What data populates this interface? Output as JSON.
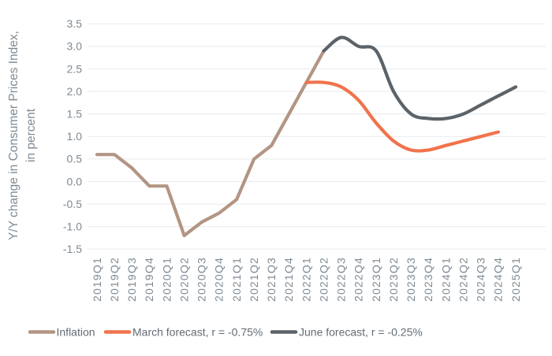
{
  "chart_data": {
    "type": "line",
    "title": "",
    "ylabel_line1": "Y/Y change in Consumer Prices Index,",
    "ylabel_line2": "in percent",
    "xlabel": "",
    "grid": true,
    "legend_position": "bottom",
    "ylim": [
      -1.5,
      3.5
    ],
    "y_ticks": [
      3.5,
      3.0,
      2.5,
      2.0,
      1.5,
      1.0,
      0.5,
      0.0,
      -0.5,
      -1.0,
      -1.5
    ],
    "categories": [
      "2019Q1",
      "2019Q2",
      "2019Q3",
      "2019Q4",
      "2020Q1",
      "2020Q2",
      "2020Q3",
      "2020Q4",
      "2021Q1",
      "2021Q2",
      "2021Q3",
      "2021Q4",
      "2022Q1",
      "2022Q2",
      "2022Q3",
      "2022Q4",
      "2023Q1",
      "2023Q2",
      "2023Q3",
      "2023Q4",
      "2024Q1",
      "2024Q2",
      "2024Q3",
      "2024Q4",
      "2025Q1"
    ],
    "series": [
      {
        "name": "Inflation",
        "color": "#B39584",
        "smooth": false,
        "values": [
          0.6,
          0.6,
          0.3,
          -0.1,
          -0.1,
          -1.2,
          -0.9,
          -0.7,
          -0.4,
          0.5,
          0.8,
          1.5,
          2.2,
          2.9,
          null,
          null,
          null,
          null,
          null,
          null,
          null,
          null,
          null,
          null,
          null
        ]
      },
      {
        "name": "March forecast, r = -0.75%",
        "color": "#F1734C",
        "smooth": true,
        "values": [
          null,
          null,
          null,
          null,
          null,
          null,
          null,
          null,
          null,
          null,
          null,
          null,
          2.2,
          2.2,
          2.1,
          1.8,
          1.3,
          0.9,
          0.7,
          0.7,
          0.8,
          0.9,
          1.0,
          1.1,
          null
        ]
      },
      {
        "name": "June forecast, r = -0.25%",
        "color": "#5B6369",
        "smooth": true,
        "values": [
          null,
          null,
          null,
          null,
          null,
          null,
          null,
          null,
          null,
          null,
          null,
          null,
          null,
          2.9,
          3.2,
          3.0,
          2.9,
          2.0,
          1.5,
          1.4,
          1.4,
          1.5,
          1.7,
          1.9,
          2.1
        ]
      }
    ]
  },
  "style": {
    "background": "#FFFFFF",
    "grid_color": "#E7EAED",
    "bottom_axis_color": "#D3D8DC",
    "axis_text_color": "#7F8A93",
    "legend_text_color": "#626C74"
  }
}
